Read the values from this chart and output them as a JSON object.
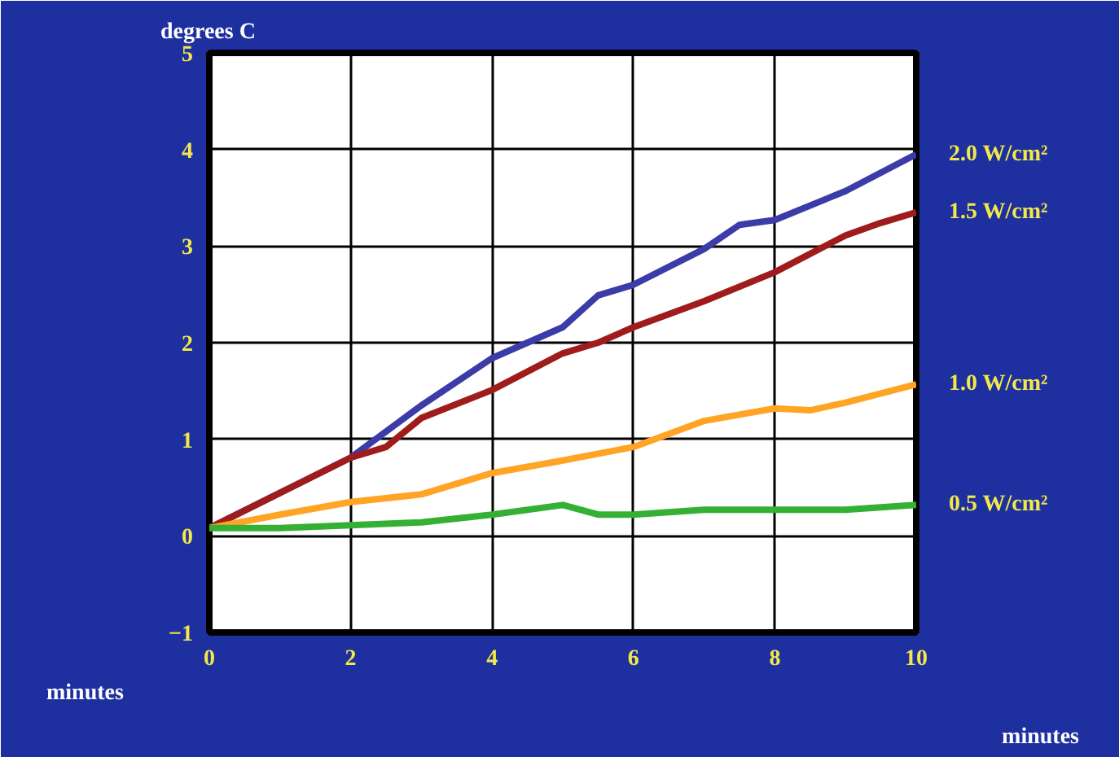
{
  "chart_data": {
    "type": "line",
    "ylabel": "degrees C",
    "xlabel": "minutes",
    "xlim": [
      0,
      10
    ],
    "xticks": [
      0,
      2,
      4,
      6,
      8,
      10
    ],
    "ylim": [
      -1,
      5
    ],
    "yticks": [
      -1,
      0,
      1,
      2,
      3,
      4,
      5
    ],
    "grid": true,
    "series": [
      {
        "name": "2.0 W/cm²",
        "color": "#3c3ca8",
        "x": [
          0,
          2,
          3,
          4,
          5,
          5.5,
          6,
          7,
          7.5,
          8,
          9,
          10
        ],
        "values": [
          0.08,
          0.81,
          1.35,
          1.84,
          2.16,
          2.49,
          2.6,
          2.97,
          3.22,
          3.27,
          3.57,
          3.95
        ]
      },
      {
        "name": "1.5 W/cm²",
        "color": "#a01c1c",
        "x": [
          0,
          2,
          2.5,
          3,
          4,
          5,
          5.5,
          6,
          7,
          8,
          9,
          9.5,
          10
        ],
        "values": [
          0.08,
          0.81,
          0.92,
          1.22,
          1.51,
          1.89,
          2.0,
          2.16,
          2.43,
          2.73,
          3.11,
          3.24,
          3.35
        ]
      },
      {
        "name": "1.0 W/cm²",
        "color": "#ffa424",
        "x": [
          0,
          1,
          2,
          3,
          4,
          5,
          6,
          7,
          8,
          8.5,
          9,
          10
        ],
        "values": [
          0.08,
          0.22,
          0.35,
          0.43,
          0.65,
          0.78,
          0.92,
          1.19,
          1.32,
          1.3,
          1.38,
          1.57
        ]
      },
      {
        "name": "0.5 W/cm²",
        "color": "#34b034",
        "x": [
          0,
          1,
          2,
          3,
          4,
          5,
          5.5,
          6,
          7,
          8,
          9,
          10
        ],
        "values": [
          0.08,
          0.08,
          0.11,
          0.14,
          0.22,
          0.32,
          0.22,
          0.22,
          0.27,
          0.27,
          0.27,
          0.32
        ]
      }
    ]
  }
}
